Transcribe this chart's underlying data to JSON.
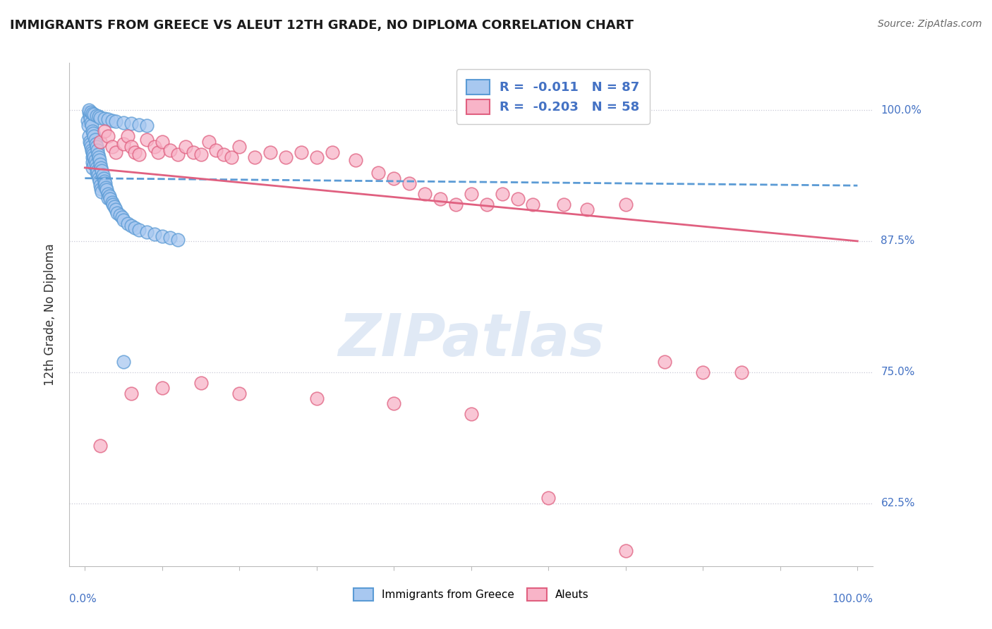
{
  "title": "IMMIGRANTS FROM GREECE VS ALEUT 12TH GRADE, NO DIPLOMA CORRELATION CHART",
  "source": "Source: ZipAtlas.com",
  "ylabel": "12th Grade, No Diploma",
  "legend_r_blue": "-0.011",
  "legend_n_blue": "87",
  "legend_r_pink": "-0.203",
  "legend_n_pink": "58",
  "legend_label_blue": "Immigrants from Greece",
  "legend_label_pink": "Aleuts",
  "blue_scatter_color": "#A8C8F0",
  "blue_edge_color": "#5B9BD5",
  "pink_scatter_color": "#F8B4C8",
  "pink_edge_color": "#E06080",
  "blue_line_color": "#5B9BD5",
  "pink_line_color": "#E06080",
  "xlim": [
    -0.02,
    1.02
  ],
  "ylim": [
    0.565,
    1.045
  ],
  "yticks": [
    0.625,
    0.75,
    0.875,
    1.0
  ],
  "ytick_labels": [
    "62.5%",
    "75.0%",
    "87.5%",
    "100.0%"
  ],
  "blue_trend_x0": 0.0,
  "blue_trend_x1": 1.0,
  "blue_trend_y0": 0.935,
  "blue_trend_y1": 0.928,
  "pink_trend_x0": 0.0,
  "pink_trend_x1": 1.0,
  "pink_trend_y0": 0.945,
  "pink_trend_y1": 0.875,
  "blue_x": [
    0.003,
    0.004,
    0.005,
    0.005,
    0.006,
    0.006,
    0.007,
    0.007,
    0.008,
    0.008,
    0.009,
    0.009,
    0.01,
    0.01,
    0.01,
    0.01,
    0.01,
    0.011,
    0.011,
    0.012,
    0.012,
    0.012,
    0.013,
    0.013,
    0.014,
    0.014,
    0.015,
    0.015,
    0.015,
    0.016,
    0.016,
    0.017,
    0.017,
    0.018,
    0.018,
    0.019,
    0.019,
    0.02,
    0.02,
    0.021,
    0.021,
    0.022,
    0.022,
    0.023,
    0.024,
    0.025,
    0.025,
    0.026,
    0.027,
    0.028,
    0.03,
    0.03,
    0.032,
    0.033,
    0.035,
    0.036,
    0.038,
    0.04,
    0.042,
    0.045,
    0.048,
    0.05,
    0.055,
    0.06,
    0.065,
    0.07,
    0.08,
    0.09,
    0.1,
    0.11,
    0.12,
    0.005,
    0.008,
    0.01,
    0.012,
    0.015,
    0.018,
    0.02,
    0.025,
    0.03,
    0.035,
    0.04,
    0.05,
    0.06,
    0.07,
    0.08,
    0.05
  ],
  "blue_y": [
    0.99,
    0.985,
    0.998,
    0.975,
    0.995,
    0.97,
    0.992,
    0.968,
    0.988,
    0.965,
    0.985,
    0.962,
    0.98,
    0.96,
    0.955,
    0.95,
    0.945,
    0.978,
    0.958,
    0.975,
    0.955,
    0.948,
    0.972,
    0.952,
    0.968,
    0.948,
    0.965,
    0.945,
    0.94,
    0.962,
    0.942,
    0.958,
    0.938,
    0.955,
    0.935,
    0.952,
    0.932,
    0.948,
    0.928,
    0.945,
    0.925,
    0.942,
    0.922,
    0.938,
    0.935,
    0.932,
    0.928,
    0.93,
    0.926,
    0.924,
    0.92,
    0.916,
    0.918,
    0.915,
    0.912,
    0.91,
    0.908,
    0.905,
    0.902,
    0.9,
    0.898,
    0.895,
    0.892,
    0.89,
    0.888,
    0.886,
    0.884,
    0.882,
    0.88,
    0.878,
    0.876,
    1.0,
    0.998,
    0.997,
    0.996,
    0.995,
    0.994,
    0.993,
    0.992,
    0.991,
    0.99,
    0.989,
    0.988,
    0.987,
    0.986,
    0.985,
    0.76
  ],
  "pink_x": [
    0.02,
    0.025,
    0.03,
    0.035,
    0.04,
    0.05,
    0.055,
    0.06,
    0.065,
    0.07,
    0.08,
    0.09,
    0.095,
    0.1,
    0.11,
    0.12,
    0.13,
    0.14,
    0.15,
    0.16,
    0.17,
    0.18,
    0.19,
    0.2,
    0.22,
    0.24,
    0.26,
    0.28,
    0.3,
    0.32,
    0.35,
    0.38,
    0.4,
    0.42,
    0.44,
    0.46,
    0.48,
    0.5,
    0.52,
    0.54,
    0.56,
    0.58,
    0.62,
    0.65,
    0.7,
    0.75,
    0.8,
    0.85,
    0.02,
    0.06,
    0.1,
    0.15,
    0.2,
    0.3,
    0.4,
    0.5,
    0.6,
    0.7
  ],
  "pink_y": [
    0.97,
    0.98,
    0.975,
    0.965,
    0.96,
    0.968,
    0.975,
    0.965,
    0.96,
    0.958,
    0.972,
    0.965,
    0.96,
    0.97,
    0.962,
    0.958,
    0.965,
    0.96,
    0.958,
    0.97,
    0.962,
    0.958,
    0.955,
    0.965,
    0.955,
    0.96,
    0.955,
    0.96,
    0.955,
    0.96,
    0.952,
    0.94,
    0.935,
    0.93,
    0.92,
    0.915,
    0.91,
    0.92,
    0.91,
    0.92,
    0.915,
    0.91,
    0.91,
    0.905,
    0.91,
    0.76,
    0.75,
    0.75,
    0.68,
    0.73,
    0.735,
    0.74,
    0.73,
    0.725,
    0.72,
    0.71,
    0.63,
    0.58
  ]
}
